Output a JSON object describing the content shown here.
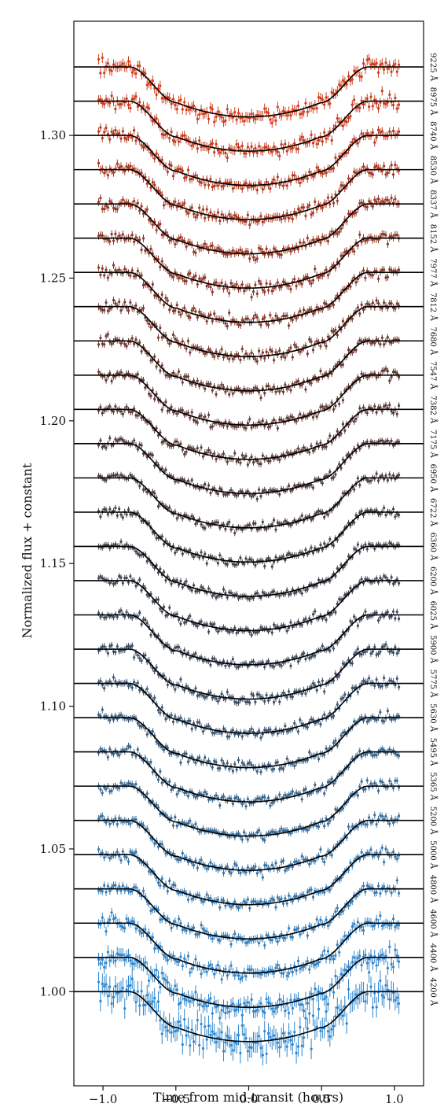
{
  "chart_data": {
    "type": "scatter",
    "xlabel": "Time from mid-transit (hours)",
    "ylabel": "Normalized flux + constant",
    "xlim": [
      -1.2,
      1.2
    ],
    "ylim": [
      0.967,
      1.34
    ],
    "x_ticks": [
      {
        "value": -1.0,
        "label": "−1.0"
      },
      {
        "value": -0.5,
        "label": "−0.5"
      },
      {
        "value": 0.0,
        "label": "0.0"
      },
      {
        "value": 0.5,
        "label": "0.5"
      },
      {
        "value": 1.0,
        "label": "1.0"
      }
    ],
    "y_ticks": [
      {
        "value": 1.0,
        "label": "1.00"
      },
      {
        "value": 1.05,
        "label": "1.05"
      },
      {
        "value": 1.1,
        "label": "1.10"
      },
      {
        "value": 1.15,
        "label": "1.15"
      },
      {
        "value": 1.2,
        "label": "1.20"
      },
      {
        "value": 1.25,
        "label": "1.25"
      },
      {
        "value": 1.3,
        "label": "1.30"
      }
    ],
    "grid": false,
    "legend": "wavelength labels along right edge, rotated",
    "model_color": "#000000",
    "transit": {
      "t14_hours": 1.64,
      "t23_hours": 0.98,
      "depth": 0.0175
    },
    "offset_step": 0.012,
    "series": [
      {
        "name": "4200 Å",
        "offset": 1.0,
        "color": "#2b86d1",
        "scatter": 0.004
      },
      {
        "name": "4400 Å",
        "offset": 1.012,
        "color": "#2e84cb",
        "scatter": 0.0026
      },
      {
        "name": "4600 Å",
        "offset": 1.024,
        "color": "#3180c2",
        "scatter": 0.0018
      },
      {
        "name": "4800 Å",
        "offset": 1.036,
        "color": "#337bb7",
        "scatter": 0.0015
      },
      {
        "name": "5000 Å",
        "offset": 1.048,
        "color": "#3575ab",
        "scatter": 0.0014
      },
      {
        "name": "5200 Å",
        "offset": 1.06,
        "color": "#376f9f",
        "scatter": 0.0014
      },
      {
        "name": "5365 Å",
        "offset": 1.072,
        "color": "#386893",
        "scatter": 0.0013
      },
      {
        "name": "5495 Å",
        "offset": 1.084,
        "color": "#396287",
        "scatter": 0.0013
      },
      {
        "name": "5630 Å",
        "offset": 1.096,
        "color": "#3a5b7b",
        "scatter": 0.0013
      },
      {
        "name": "5775 Å",
        "offset": 1.108,
        "color": "#3b5470",
        "scatter": 0.0013
      },
      {
        "name": "5900 Å",
        "offset": 1.12,
        "color": "#3c4e65",
        "scatter": 0.0013
      },
      {
        "name": "6025 Å",
        "offset": 1.132,
        "color": "#3e4a5c",
        "scatter": 0.0012
      },
      {
        "name": "6200 Å",
        "offset": 1.144,
        "color": "#404654",
        "scatter": 0.0012
      },
      {
        "name": "6360 Å",
        "offset": 1.156,
        "color": "#43434d",
        "scatter": 0.0012
      },
      {
        "name": "6722 Å",
        "offset": 1.168,
        "color": "#474047",
        "scatter": 0.0012
      },
      {
        "name": "6950 Å",
        "offset": 1.18,
        "color": "#4c3e42",
        "scatter": 0.0012
      },
      {
        "name": "7175 Å",
        "offset": 1.192,
        "color": "#523c3d",
        "scatter": 0.0012
      },
      {
        "name": "7382 Å",
        "offset": 1.204,
        "color": "#593b38",
        "scatter": 0.0013
      },
      {
        "name": "7547 Å",
        "offset": 1.216,
        "color": "#613a34",
        "scatter": 0.0013
      },
      {
        "name": "7680 Å",
        "offset": 1.228,
        "color": "#6a3930",
        "scatter": 0.0013
      },
      {
        "name": "7812 Å",
        "offset": 1.24,
        "color": "#74382c",
        "scatter": 0.0014
      },
      {
        "name": "7977 Å",
        "offset": 1.252,
        "color": "#803729",
        "scatter": 0.0014
      },
      {
        "name": "8152 Å",
        "offset": 1.264,
        "color": "#8c3626",
        "scatter": 0.0015
      },
      {
        "name": "8337 Å",
        "offset": 1.276,
        "color": "#993623",
        "scatter": 0.0015
      },
      {
        "name": "8530 Å",
        "offset": 1.288,
        "color": "#a73620",
        "scatter": 0.0016
      },
      {
        "name": "8740 Å",
        "offset": 1.3,
        "color": "#b5371e",
        "scatter": 0.0016
      },
      {
        "name": "8975 Å",
        "offset": 1.312,
        "color": "#c4391c",
        "scatter": 0.0018
      },
      {
        "name": "9225 Å",
        "offset": 1.324,
        "color": "#d33c1a",
        "scatter": 0.002
      }
    ]
  }
}
